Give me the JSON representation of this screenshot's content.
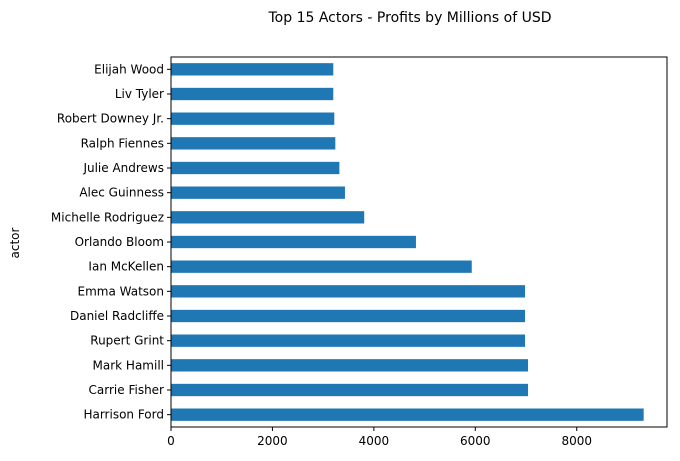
{
  "chart_data": {
    "type": "bar",
    "orientation": "horizontal",
    "title": "Top 15 Actors - Profits by Millions of USD",
    "xlabel": "",
    "ylabel": "actor",
    "categories": [
      "Harrison Ford",
      "Carrie Fisher",
      "Mark Hamill",
      "Rupert Grint",
      "Daniel Radcliffe",
      "Emma Watson",
      "Ian McKellen",
      "Orlando Bloom",
      "Michelle Rodriguez",
      "Alec Guinness",
      "Julie Andrews",
      "Ralph Fiennes",
      "Robert Downey Jr.",
      "Liv Tyler",
      "Elijah Wood"
    ],
    "values": [
      9320,
      7040,
      7040,
      6980,
      6980,
      6980,
      5930,
      4830,
      3810,
      3430,
      3320,
      3240,
      3220,
      3200,
      3200
    ],
    "xticks": [
      0,
      2000,
      4000,
      6000,
      8000
    ],
    "xlim": [
      0,
      9780
    ],
    "grid": false,
    "color": "#1f77b4"
  }
}
